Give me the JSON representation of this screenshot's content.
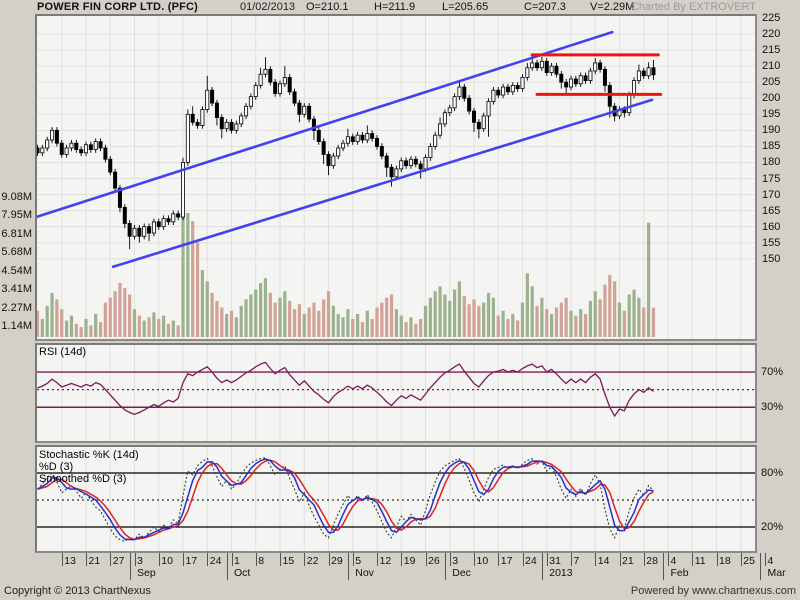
{
  "header": {
    "title": "POWER FIN CORP LTD. (PFC)",
    "date": "01/02/2013",
    "open": "O=210.1",
    "high": "H=211.9",
    "low": "L=205.65",
    "close": "C=207.3",
    "volume": "V=2.29M",
    "credit": "Charted By EXTROVERT"
  },
  "footer": {
    "copyright": "Copyright © 2013 ChartNexus",
    "powered": "Powered by www.chartnexus.com"
  },
  "colors": {
    "window_bg": "#d4d0c8",
    "panel_bg": "#f4f4f2",
    "grid": "#e0e0dc",
    "candle_line": "#000000",
    "candle_up_fill": "#ffffff",
    "candle_down_fill": "#000000",
    "vol_up": "#9cb28e",
    "vol_down": "#d2a296",
    "trend_blue": "#4143ee",
    "level_red": "#ee1414",
    "rsi_line": "#7b1b54",
    "stoch_k": "#3a3a3a",
    "stoch_d": "#2233cc",
    "stoch_sd": "#dd2222"
  },
  "price_axis": {
    "labels": [
      225,
      220,
      215,
      210,
      205,
      200,
      195,
      190,
      185,
      180,
      175,
      170,
      165,
      160,
      155,
      150
    ]
  },
  "volume_axis": {
    "labels": [
      "9.08M",
      "7.95M",
      "6.81M",
      "5.68M",
      "4.54M",
      "3.41M",
      "2.27M",
      "1.14M"
    ],
    "values": [
      9.08,
      7.95,
      6.81,
      5.68,
      4.54,
      3.41,
      2.27,
      1.14
    ]
  },
  "x_axis": {
    "tick_labels": [
      "13",
      "21",
      "27",
      "3",
      "10",
      "17",
      "24",
      "1",
      "8",
      "15",
      "22",
      "29",
      "5",
      "12",
      "19",
      "26",
      "3",
      "10",
      "17",
      "24",
      "31",
      "7",
      "14",
      "21",
      "28",
      "4",
      "11",
      "18",
      "25",
      "4"
    ],
    "tick_start_index": 5,
    "tick_step": 5,
    "months": [
      {
        "label": "Sep",
        "tick_i": 20
      },
      {
        "label": "Oct",
        "tick_i": 40
      },
      {
        "label": "Nov",
        "tick_i": 65
      },
      {
        "label": "Dec",
        "tick_i": 85
      },
      {
        "label": "2013",
        "tick_i": 105
      },
      {
        "label": "Feb",
        "tick_i": 130
      },
      {
        "label": "Mar",
        "tick_i": 150
      }
    ]
  },
  "panels": {
    "rsi": {
      "title": "RSI (14d)",
      "levels": [
        70,
        30
      ],
      "dotted_level": 50,
      "level_labels": [
        "70%",
        "30%"
      ]
    },
    "stoch": {
      "title_k": "Stochastic %K (14d)",
      "title_d": "%D (3)",
      "title_sd": "Smoothed %D (3)",
      "levels": [
        80,
        20
      ],
      "dotted_level": 50,
      "level_labels": [
        "80%",
        "20%"
      ],
      "d_is_sma3_of_k": true,
      "sd_is_sma3_of_d": true
    }
  },
  "chart_data": {
    "type": "candlestick",
    "title": "POWER FIN CORP LTD. (PFC)",
    "price_range": [
      150,
      225
    ],
    "open": [
      184.5,
      183,
      184.5,
      187,
      190,
      186,
      182.5,
      184.5,
      186,
      184,
      183,
      185.5,
      184,
      186.5,
      184.5,
      181,
      177,
      172,
      166,
      161,
      157,
      159.5,
      157,
      160,
      158,
      161.5,
      160,
      162.5,
      161.5,
      164,
      163,
      180,
      195,
      192.5,
      191.5,
      196.5,
      202.5,
      198.5,
      194,
      190.5,
      192.5,
      190,
      192,
      194.5,
      197.5,
      200.5,
      204,
      207.5,
      209,
      205,
      201.5,
      204.5,
      206.5,
      202,
      198.5,
      195,
      197.5,
      193.5,
      190,
      186.5,
      182.5,
      179,
      182,
      184.5,
      186,
      188,
      186.5,
      188.5,
      187,
      189,
      187.5,
      185,
      182,
      178.5,
      175.5,
      178,
      180.5,
      179,
      181,
      179.5,
      178,
      181.5,
      185,
      188.5,
      192,
      195.5,
      197,
      200.5,
      203.5,
      200,
      196,
      192.5,
      190.5,
      194.5,
      199,
      202.5,
      201,
      203.5,
      202,
      204,
      203,
      206.5,
      209.5,
      211,
      209.5,
      211.5,
      208,
      210,
      207.5,
      205,
      203.5,
      206,
      204.5,
      207,
      205.5,
      208.5,
      211,
      209,
      204,
      197.5,
      194.5,
      196.5,
      195.5,
      201,
      205.5,
      208.5,
      207,
      209.5,
      210.1
    ],
    "high": [
      185.5,
      185.5,
      188,
      191,
      191,
      187,
      185.5,
      187,
      187,
      185,
      186.5,
      186.5,
      187.5,
      187.5,
      185.5,
      182,
      178,
      173,
      167,
      162,
      160.5,
      160.5,
      161,
      161,
      162.5,
      162.5,
      163.5,
      163.5,
      165,
      165,
      181.5,
      196.5,
      197.5,
      193.5,
      197.5,
      207,
      203.5,
      199.5,
      195,
      193.5,
      193.5,
      193,
      195.5,
      198.5,
      201.5,
      205,
      209.5,
      212.8,
      210,
      206,
      205.5,
      210,
      207.5,
      203,
      199.5,
      198.5,
      198.5,
      194.5,
      191,
      187.5,
      183.5,
      183,
      185.5,
      187,
      190.5,
      189,
      189.5,
      189.5,
      191.5,
      190,
      188.5,
      186,
      183,
      179.5,
      179,
      181.5,
      181.5,
      182,
      182,
      180.5,
      182.5,
      186,
      189.5,
      194,
      196.5,
      198,
      201.5,
      205,
      204.5,
      201,
      197,
      193.5,
      195.5,
      200,
      203.5,
      203.5,
      204.5,
      204.5,
      205,
      205,
      207.5,
      211,
      213.2,
      212,
      212.9,
      212.5,
      211,
      211,
      208.5,
      206,
      207,
      207,
      208,
      208,
      209.5,
      212.5,
      212,
      210,
      205,
      198.5,
      197.5,
      197.5,
      202,
      206.5,
      210.5,
      209.5,
      211.2,
      211.9
    ],
    "low": [
      182,
      182,
      183.5,
      186,
      185,
      181.5,
      181.5,
      183.5,
      183,
      182,
      182,
      183,
      183,
      183.5,
      180,
      176,
      171,
      164.5,
      159.5,
      153,
      156,
      155,
      156,
      155.5,
      157,
      159,
      159,
      160.5,
      160.5,
      162,
      162,
      179,
      191.5,
      190.5,
      190.5,
      195.5,
      197.5,
      191.5,
      187.5,
      189.5,
      189,
      189,
      191,
      193.5,
      196.5,
      199.5,
      203,
      206.5,
      204,
      200.5,
      200.5,
      203.5,
      201,
      197.5,
      192.5,
      194,
      192.5,
      187,
      185.5,
      179.5,
      176,
      178,
      181,
      183.5,
      185,
      185.5,
      185.5,
      186,
      186,
      186.5,
      184,
      181,
      175.5,
      172.5,
      174.5,
      177,
      178,
      178,
      178.5,
      175,
      177,
      180.5,
      184,
      187.5,
      191,
      194.5,
      196,
      199.5,
      199,
      195,
      189.5,
      187.5,
      189.5,
      188,
      198,
      200,
      200,
      201,
      201,
      202,
      202,
      205.5,
      208.5,
      208.5,
      208.5,
      207,
      207,
      206.5,
      203,
      201.3,
      202.5,
      203.5,
      203.5,
      204.5,
      204.5,
      207.5,
      208,
      202,
      194,
      192.8,
      193.5,
      194,
      194.5,
      200,
      204.5,
      206,
      206,
      205.65
    ],
    "close": [
      183,
      184.5,
      187,
      190,
      186,
      182.5,
      184.5,
      186,
      184,
      183,
      185.5,
      184,
      186.5,
      184.5,
      181,
      177,
      172,
      166,
      161,
      157,
      159.5,
      157,
      160,
      158,
      161.5,
      160,
      162.5,
      161.5,
      164,
      163,
      180,
      195,
      192.5,
      191.5,
      196.5,
      202.5,
      198.5,
      194,
      190.5,
      192.5,
      190,
      192,
      194.5,
      197.5,
      200.5,
      204,
      207.5,
      209,
      205,
      201.5,
      204.5,
      206.5,
      202,
      198.5,
      195,
      197.5,
      193.5,
      190,
      186.5,
      182.5,
      179,
      182,
      184.5,
      186,
      188,
      186.5,
      188.5,
      187,
      189,
      187.5,
      185,
      182,
      178.5,
      175.5,
      178,
      180.5,
      179,
      181,
      179.5,
      178,
      181.5,
      185,
      188.5,
      192,
      195.5,
      197,
      200.5,
      203.5,
      200,
      196,
      192.5,
      190.5,
      194.5,
      199,
      202.5,
      201,
      203.5,
      202,
      204,
      203,
      206.5,
      209.5,
      211,
      209.5,
      211.5,
      208,
      210,
      207.5,
      205,
      203.5,
      206,
      204.5,
      207,
      205.5,
      208.5,
      211,
      209,
      204,
      197.5,
      194.5,
      196.5,
      195.5,
      201,
      205.5,
      208.5,
      207,
      209.5,
      207.3
    ],
    "volume_millions": [
      2.1,
      1.6,
      2.4,
      3.2,
      2.8,
      2.2,
      1.5,
      1.8,
      1.3,
      1.1,
      1.6,
      1.2,
      1.9,
      1.4,
      2.6,
      2.9,
      3.3,
      3.8,
      3.5,
      3.1,
      2.2,
      1.8,
      1.5,
      1.7,
      2.0,
      1.6,
      1.8,
      1.3,
      1.5,
      1.2,
      9.5,
      8.1,
      7.6,
      6.3,
      4.6,
      3.9,
      3.2,
      2.7,
      2.3,
      1.9,
      2.1,
      1.7,
      2.4,
      2.8,
      3.1,
      3.4,
      3.8,
      4.1,
      3.2,
      2.6,
      2.9,
      3.3,
      2.7,
      2.2,
      2.5,
      1.9,
      2.3,
      2.6,
      2.1,
      2.8,
      3.3,
      2.4,
      1.9,
      1.7,
      2.2,
      1.6,
      1.9,
      1.4,
      2.1,
      1.6,
      2.3,
      2.6,
      2.9,
      3.1,
      2.2,
      1.8,
      1.4,
      1.7,
      1.3,
      1.6,
      2.4,
      2.9,
      3.3,
      3.6,
      3.1,
      2.7,
      3.4,
      3.9,
      3.0,
      2.5,
      2.8,
      2.4,
      2.6,
      3.2,
      2.9,
      1.8,
      2.1,
      1.6,
      1.9,
      1.5,
      2.6,
      4.4,
      3.6,
      2.4,
      2.9,
      2.2,
      1.9,
      2.3,
      2.6,
      2.9,
      2.1,
      1.8,
      2.2,
      1.9,
      2.7,
      3.3,
      2.8,
      3.7,
      4.3,
      3.9,
      2.6,
      2.1,
      3.1,
      3.4,
      2.9,
      2.3,
      7.5,
      2.29
    ],
    "rsi": [
      52,
      54,
      57,
      62,
      58,
      53,
      55,
      57,
      55,
      53,
      56,
      54,
      58,
      56,
      50,
      44,
      38,
      32,
      27,
      24,
      22,
      24,
      27,
      30,
      33,
      31,
      35,
      38,
      36,
      40,
      58,
      68,
      66,
      70,
      73,
      76,
      70,
      63,
      58,
      61,
      58,
      61,
      65,
      69,
      72,
      76,
      79,
      81,
      74,
      68,
      72,
      75,
      67,
      61,
      55,
      60,
      54,
      48,
      44,
      39,
      35,
      42,
      47,
      50,
      54,
      51,
      54,
      51,
      55,
      52,
      47,
      42,
      36,
      32,
      38,
      43,
      40,
      44,
      41,
      38,
      45,
      52,
      58,
      64,
      69,
      72,
      76,
      79,
      71,
      64,
      57,
      53,
      60,
      66,
      70,
      71,
      73,
      70,
      72,
      70,
      74,
      77,
      79,
      75,
      77,
      70,
      73,
      68,
      62,
      57,
      62,
      58,
      62,
      58,
      64,
      68,
      62,
      45,
      30,
      20,
      28,
      26,
      38,
      45,
      50,
      47,
      52,
      48
    ],
    "stoch_k": [
      62,
      68,
      75,
      80,
      70,
      58,
      62,
      66,
      60,
      52,
      58,
      50,
      42,
      38,
      28,
      18,
      10,
      6,
      4,
      8,
      6,
      12,
      8,
      14,
      20,
      15,
      22,
      18,
      28,
      24,
      55,
      82,
      78,
      88,
      93,
      96,
      88,
      76,
      65,
      72,
      62,
      68,
      78,
      86,
      91,
      94,
      96,
      97,
      88,
      78,
      84,
      88,
      74,
      62,
      48,
      58,
      44,
      32,
      22,
      12,
      8,
      22,
      35,
      45,
      55,
      48,
      55,
      48,
      56,
      48,
      38,
      26,
      14,
      8,
      20,
      32,
      26,
      34,
      28,
      22,
      38,
      56,
      70,
      82,
      88,
      91,
      94,
      96,
      85,
      72,
      58,
      48,
      62,
      75,
      84,
      86,
      89,
      85,
      88,
      85,
      90,
      94,
      96,
      90,
      93,
      82,
      87,
      76,
      62,
      52,
      62,
      54,
      63,
      55,
      68,
      78,
      68,
      40,
      18,
      8,
      22,
      18,
      38,
      52,
      62,
      55,
      66,
      60
    ],
    "trendlines": [
      {
        "name": "channel-upper",
        "i1": -0.3,
        "p1": 163,
        "i2": 118.5,
        "p2": 220.6
      },
      {
        "name": "channel-lower",
        "i1": 15.6,
        "p1": 147.5,
        "i2": 126.7,
        "p2": 199.5
      }
    ],
    "hlevels": [
      {
        "name": "resistance",
        "price": 213.5,
        "i1": 102,
        "i2": 128
      },
      {
        "name": "support",
        "price": 201.2,
        "i1": 103,
        "i2": 128.5
      }
    ]
  }
}
